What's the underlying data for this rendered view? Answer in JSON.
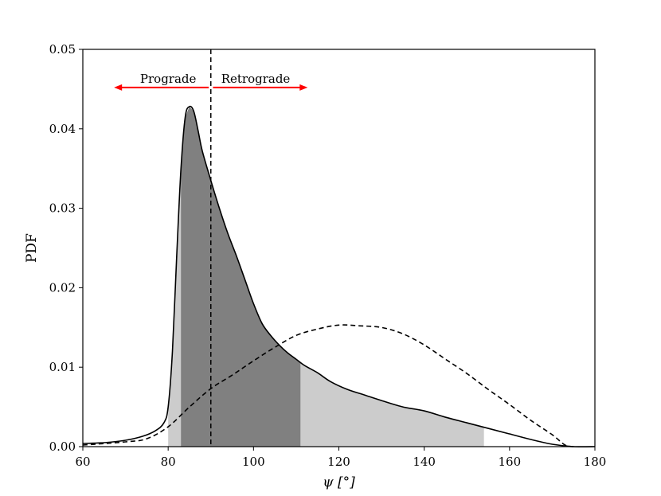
{
  "chart_data": {
    "type": "area",
    "xlabel": "ψ [°]",
    "ylabel": "PDF",
    "xlim": [
      60,
      180
    ],
    "ylim": [
      0,
      0.05
    ],
    "x_ticks": [
      60,
      80,
      100,
      120,
      140,
      160,
      180
    ],
    "y_ticks": [
      0.0,
      0.01,
      0.02,
      0.03,
      0.04,
      0.05
    ],
    "x_tick_labels": [
      "60",
      "80",
      "100",
      "120",
      "140",
      "160",
      "180"
    ],
    "y_tick_labels": [
      "0.00",
      "0.01",
      "0.02",
      "0.03",
      "0.04",
      "0.05"
    ],
    "grid": false,
    "series": [
      {
        "style": "solid",
        "color": "#000000",
        "points": [
          [
            60,
            0.0004
          ],
          [
            65,
            0.0005
          ],
          [
            70,
            0.0008
          ],
          [
            74,
            0.0013
          ],
          [
            77,
            0.002
          ],
          [
            79,
            0.003
          ],
          [
            80,
            0.005
          ],
          [
            81,
            0.012
          ],
          [
            82,
            0.024
          ],
          [
            83,
            0.035
          ],
          [
            84,
            0.0415
          ],
          [
            85,
            0.0428
          ],
          [
            86,
            0.0422
          ],
          [
            87,
            0.0398
          ],
          [
            88,
            0.0372
          ],
          [
            90,
            0.0335
          ],
          [
            92,
            0.03
          ],
          [
            94,
            0.0268
          ],
          [
            96,
            0.024
          ],
          [
            98,
            0.021
          ],
          [
            100,
            0.018
          ],
          [
            102,
            0.0155
          ],
          [
            104,
            0.014
          ],
          [
            106,
            0.0128
          ],
          [
            108,
            0.0118
          ],
          [
            110,
            0.011
          ],
          [
            112,
            0.0102
          ],
          [
            115,
            0.0093
          ],
          [
            118,
            0.0082
          ],
          [
            122,
            0.0072
          ],
          [
            126,
            0.0065
          ],
          [
            130,
            0.0058
          ],
          [
            135,
            0.005
          ],
          [
            140,
            0.0045
          ],
          [
            145,
            0.0037
          ],
          [
            150,
            0.003
          ],
          [
            155,
            0.0023
          ],
          [
            160,
            0.0016
          ],
          [
            165,
            0.0009
          ],
          [
            170,
            0.0003
          ],
          [
            175,
            0.0
          ],
          [
            180,
            0.0
          ]
        ]
      },
      {
        "style": "dashed",
        "color": "#000000",
        "points": [
          [
            60,
            0.0002
          ],
          [
            70,
            0.0006
          ],
          [
            75,
            0.001
          ],
          [
            80,
            0.0025
          ],
          [
            85,
            0.005
          ],
          [
            90,
            0.0073
          ],
          [
            95,
            0.009
          ],
          [
            100,
            0.0108
          ],
          [
            105,
            0.0125
          ],
          [
            110,
            0.014
          ],
          [
            115,
            0.0148
          ],
          [
            120,
            0.0153
          ],
          [
            125,
            0.0152
          ],
          [
            130,
            0.015
          ],
          [
            135,
            0.0142
          ],
          [
            140,
            0.0128
          ],
          [
            145,
            0.011
          ],
          [
            150,
            0.0092
          ],
          [
            155,
            0.0072
          ],
          [
            160,
            0.0053
          ],
          [
            165,
            0.0033
          ],
          [
            170,
            0.0015
          ],
          [
            173,
            0.0002
          ],
          [
            175,
            0.0
          ]
        ]
      }
    ],
    "shaded_regions": [
      {
        "x_range": [
          80,
          154
        ],
        "color": "#cccccc"
      },
      {
        "x_range": [
          83,
          111
        ],
        "color": "#808080"
      }
    ],
    "vertical_lines": [
      {
        "x": 90,
        "style": "dashed",
        "color": "#000000"
      }
    ],
    "annotations": [
      {
        "text": "Prograde",
        "x": 80,
        "y": 0.0458,
        "anchor": "middle",
        "arrow_from": 89.5,
        "arrow_to": 67.5,
        "arrow_color": "#ff0000"
      },
      {
        "text": "Retrograde",
        "x": 100.5,
        "y": 0.0458,
        "anchor": "middle",
        "arrow_from": 90.5,
        "arrow_to": 112.5,
        "arrow_color": "#ff0000"
      }
    ]
  }
}
